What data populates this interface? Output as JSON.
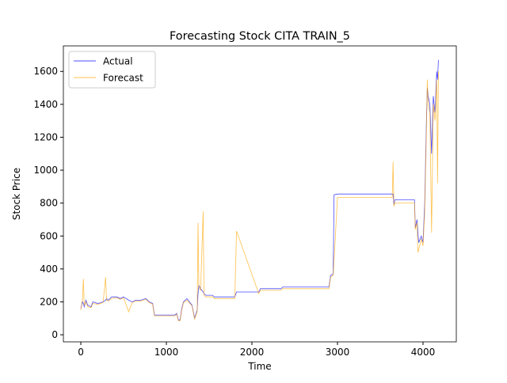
{
  "chart_data": {
    "type": "line",
    "title": "Forecasting Stock CITA TRAIN_5",
    "x_label": "Time",
    "y_label": "Stock Price",
    "xlim": [
      -204,
      4389
    ],
    "ylim": [
      -43,
      1755
    ],
    "xticks": [
      0,
      1000,
      2000,
      3000,
      4000
    ],
    "yticks": [
      0,
      200,
      400,
      600,
      800,
      1000,
      1200,
      1400,
      1600
    ],
    "legend": "upper left",
    "x": [
      0,
      20,
      30,
      40,
      60,
      80,
      120,
      140,
      200,
      260,
      290,
      300,
      320,
      360,
      420,
      460,
      500,
      560,
      600,
      640,
      700,
      760,
      800,
      840,
      860,
      1000,
      1100,
      1120,
      1140,
      1160,
      1180,
      1200,
      1240,
      1300,
      1330,
      1360,
      1370,
      1380,
      1400,
      1430,
      1440,
      1460,
      1540,
      1560,
      1800,
      1820,
      2080,
      2100,
      2340,
      2360,
      2900,
      2920,
      2950,
      2960,
      3000,
      3640,
      3650,
      3660,
      3670,
      3900,
      3910,
      3930,
      3940,
      3950,
      3980,
      4000,
      4020,
      4040,
      4050,
      4060,
      4080,
      4100,
      4120,
      4140,
      4160,
      4170,
      4180
    ],
    "series": [
      {
        "name": "Actual",
        "color": "#0000ff",
        "values": [
          160,
          200,
          190,
          170,
          210,
          180,
          170,
          200,
          190,
          200,
          210,
          220,
          210,
          230,
          230,
          220,
          230,
          210,
          200,
          210,
          210,
          220,
          200,
          190,
          120,
          120,
          120,
          130,
          90,
          90,
          160,
          200,
          220,
          180,
          100,
          150,
          250,
          300,
          280,
          260,
          250,
          240,
          240,
          230,
          230,
          260,
          260,
          280,
          280,
          290,
          290,
          360,
          370,
          850,
          855,
          855,
          855,
          790,
          820,
          820,
          650,
          700,
          620,
          560,
          600,
          560,
          800,
          1300,
          1500,
          1450,
          1400,
          1100,
          1450,
          1350,
          1600,
          1550,
          1670
        ]
      },
      {
        "name": "Forecast",
        "color": "#ffa500",
        "values": [
          150,
          220,
          340,
          180,
          200,
          170,
          165,
          190,
          185,
          195,
          350,
          210,
          205,
          220,
          225,
          215,
          225,
          140,
          195,
          205,
          205,
          215,
          195,
          185,
          115,
          115,
          115,
          125,
          85,
          85,
          150,
          195,
          210,
          175,
          95,
          140,
          680,
          290,
          270,
          750,
          240,
          230,
          230,
          220,
          220,
          630,
          250,
          270,
          270,
          280,
          280,
          350,
          360,
          450,
          835,
          835,
          1050,
          780,
          800,
          800,
          640,
          680,
          500,
          520,
          580,
          540,
          750,
          1250,
          1550,
          1400,
          1350,
          620,
          1400,
          1300,
          1550,
          920,
          1600
        ]
      }
    ]
  }
}
